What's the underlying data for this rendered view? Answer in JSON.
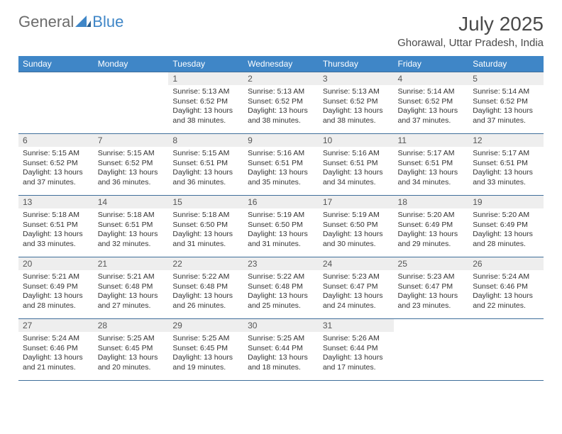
{
  "brand": {
    "part1": "General",
    "part2": "Blue"
  },
  "title": {
    "month": "July 2025",
    "location": "Ghorawal, Uttar Pradesh, India"
  },
  "calendar": {
    "day_header_bg": "#3f86c7",
    "day_header_fg": "#ffffff",
    "rule_color": "#3f6e9a",
    "daynum_bg": "#eeeeee",
    "font_family": "Arial",
    "days_of_week": [
      "Sunday",
      "Monday",
      "Tuesday",
      "Wednesday",
      "Thursday",
      "Friday",
      "Saturday"
    ],
    "weeks": [
      [
        {
          "empty": true
        },
        {
          "empty": true
        },
        {
          "num": "1",
          "sunrise": "5:13 AM",
          "sunset": "6:52 PM",
          "daylight": "13 hours and 38 minutes."
        },
        {
          "num": "2",
          "sunrise": "5:13 AM",
          "sunset": "6:52 PM",
          "daylight": "13 hours and 38 minutes."
        },
        {
          "num": "3",
          "sunrise": "5:13 AM",
          "sunset": "6:52 PM",
          "daylight": "13 hours and 38 minutes."
        },
        {
          "num": "4",
          "sunrise": "5:14 AM",
          "sunset": "6:52 PM",
          "daylight": "13 hours and 37 minutes."
        },
        {
          "num": "5",
          "sunrise": "5:14 AM",
          "sunset": "6:52 PM",
          "daylight": "13 hours and 37 minutes."
        }
      ],
      [
        {
          "num": "6",
          "sunrise": "5:15 AM",
          "sunset": "6:52 PM",
          "daylight": "13 hours and 37 minutes."
        },
        {
          "num": "7",
          "sunrise": "5:15 AM",
          "sunset": "6:52 PM",
          "daylight": "13 hours and 36 minutes."
        },
        {
          "num": "8",
          "sunrise": "5:15 AM",
          "sunset": "6:51 PM",
          "daylight": "13 hours and 36 minutes."
        },
        {
          "num": "9",
          "sunrise": "5:16 AM",
          "sunset": "6:51 PM",
          "daylight": "13 hours and 35 minutes."
        },
        {
          "num": "10",
          "sunrise": "5:16 AM",
          "sunset": "6:51 PM",
          "daylight": "13 hours and 34 minutes."
        },
        {
          "num": "11",
          "sunrise": "5:17 AM",
          "sunset": "6:51 PM",
          "daylight": "13 hours and 34 minutes."
        },
        {
          "num": "12",
          "sunrise": "5:17 AM",
          "sunset": "6:51 PM",
          "daylight": "13 hours and 33 minutes."
        }
      ],
      [
        {
          "num": "13",
          "sunrise": "5:18 AM",
          "sunset": "6:51 PM",
          "daylight": "13 hours and 33 minutes."
        },
        {
          "num": "14",
          "sunrise": "5:18 AM",
          "sunset": "6:51 PM",
          "daylight": "13 hours and 32 minutes."
        },
        {
          "num": "15",
          "sunrise": "5:18 AM",
          "sunset": "6:50 PM",
          "daylight": "13 hours and 31 minutes."
        },
        {
          "num": "16",
          "sunrise": "5:19 AM",
          "sunset": "6:50 PM",
          "daylight": "13 hours and 31 minutes."
        },
        {
          "num": "17",
          "sunrise": "5:19 AM",
          "sunset": "6:50 PM",
          "daylight": "13 hours and 30 minutes."
        },
        {
          "num": "18",
          "sunrise": "5:20 AM",
          "sunset": "6:49 PM",
          "daylight": "13 hours and 29 minutes."
        },
        {
          "num": "19",
          "sunrise": "5:20 AM",
          "sunset": "6:49 PM",
          "daylight": "13 hours and 28 minutes."
        }
      ],
      [
        {
          "num": "20",
          "sunrise": "5:21 AM",
          "sunset": "6:49 PM",
          "daylight": "13 hours and 28 minutes."
        },
        {
          "num": "21",
          "sunrise": "5:21 AM",
          "sunset": "6:48 PM",
          "daylight": "13 hours and 27 minutes."
        },
        {
          "num": "22",
          "sunrise": "5:22 AM",
          "sunset": "6:48 PM",
          "daylight": "13 hours and 26 minutes."
        },
        {
          "num": "23",
          "sunrise": "5:22 AM",
          "sunset": "6:48 PM",
          "daylight": "13 hours and 25 minutes."
        },
        {
          "num": "24",
          "sunrise": "5:23 AM",
          "sunset": "6:47 PM",
          "daylight": "13 hours and 24 minutes."
        },
        {
          "num": "25",
          "sunrise": "5:23 AM",
          "sunset": "6:47 PM",
          "daylight": "13 hours and 23 minutes."
        },
        {
          "num": "26",
          "sunrise": "5:24 AM",
          "sunset": "6:46 PM",
          "daylight": "13 hours and 22 minutes."
        }
      ],
      [
        {
          "num": "27",
          "sunrise": "5:24 AM",
          "sunset": "6:46 PM",
          "daylight": "13 hours and 21 minutes."
        },
        {
          "num": "28",
          "sunrise": "5:25 AM",
          "sunset": "6:45 PM",
          "daylight": "13 hours and 20 minutes."
        },
        {
          "num": "29",
          "sunrise": "5:25 AM",
          "sunset": "6:45 PM",
          "daylight": "13 hours and 19 minutes."
        },
        {
          "num": "30",
          "sunrise": "5:25 AM",
          "sunset": "6:44 PM",
          "daylight": "13 hours and 18 minutes."
        },
        {
          "num": "31",
          "sunrise": "5:26 AM",
          "sunset": "6:44 PM",
          "daylight": "13 hours and 17 minutes."
        },
        {
          "empty": true
        },
        {
          "empty": true
        }
      ]
    ],
    "labels": {
      "sunrise": "Sunrise:",
      "sunset": "Sunset:",
      "daylight": "Daylight:"
    }
  }
}
